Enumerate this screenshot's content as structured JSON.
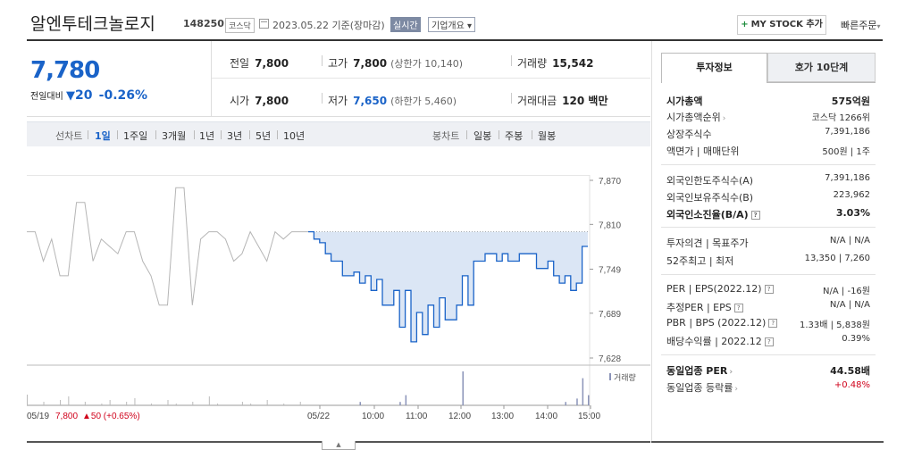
{
  "header": {
    "stock_name": "알엔투테크놀로지",
    "stock_code": "148250",
    "market": "코스닥",
    "date_text": "2023.05.22 기준(장마감)",
    "realtime_badge": "실시간",
    "company_overview": "기업개요",
    "company_overview_arrow": "▾",
    "mystock_plus": "+",
    "mystock_label": "MY STOCK 추가",
    "quick_order_label": "빠른주문",
    "quick_order_arrow": "▾"
  },
  "price": {
    "current": "7,780",
    "vs_label": "전일대비",
    "change_symbol": "▼",
    "change_value": "20",
    "change_percent": "-0.26%"
  },
  "stats": {
    "prev_close_label": "전일",
    "prev_close": "7,800",
    "high_label": "고가",
    "high": "7,800",
    "upper_limit": "(상한가 10,140)",
    "volume_label": "거래량",
    "volume": "15,542",
    "open_label": "시가",
    "open": "7,800",
    "low_label": "저가",
    "low": "7,650",
    "lower_limit": "(하한가 5,460)",
    "amount_label": "거래대금",
    "amount": "120 백만"
  },
  "toolbar": {
    "line_chart_label": "선차트",
    "ranges": [
      "1일",
      "1주일",
      "3개월",
      "1년",
      "3년",
      "5년",
      "10년"
    ],
    "selected_range": "1일",
    "candle_chart_label": "봉차트",
    "candle_ranges": [
      "일봉",
      "주봉",
      "월봉"
    ]
  },
  "chart_data": {
    "type": "line",
    "y_ticks": [
      "7,870",
      "7,810",
      "7,749",
      "7,689",
      "7,628"
    ],
    "ylim": [
      7628,
      7870
    ],
    "prev_close": 7800,
    "x_ticks": [
      "05/22",
      "10:00",
      "11:00",
      "12:00",
      "13:00",
      "14:00",
      "15:00"
    ],
    "prev_day_label": "05/19",
    "prev_day_price": "7,800",
    "prev_day_change": "▲50 (+0.65%)",
    "volume_legend": "거래량",
    "series": [
      {
        "values": [
          7800,
          7790,
          7785,
          7770,
          7760,
          7760,
          7740,
          7740,
          7745,
          7730,
          7740,
          7720,
          7735,
          7700,
          7700,
          7720,
          7670,
          7720,
          7650,
          7690,
          7660,
          7700,
          7670,
          7710,
          7680,
          7680,
          7700,
          7740,
          7700,
          7760,
          7760,
          7770,
          7770,
          7760,
          7770,
          7760,
          7760,
          7770,
          7770,
          7770,
          7750,
          7750,
          7760,
          7740,
          7730,
          7740,
          7720,
          7730,
          7780,
          7780
        ]
      }
    ],
    "volume": [
      0,
      0,
      0,
      0,
      0,
      0,
      0,
      0,
      0,
      1,
      0,
      0,
      0,
      0,
      0,
      0,
      1,
      3,
      0,
      0,
      0,
      0,
      0,
      0,
      0,
      0,
      0,
      10,
      0,
      0,
      0,
      0,
      0,
      0,
      0,
      0,
      0,
      0,
      0,
      0,
      0,
      0,
      0,
      0,
      0,
      1,
      0,
      2,
      8,
      3
    ]
  },
  "info_panel": {
    "tab_active": "투자정보",
    "tab_inactive": "호가 10단계",
    "market_cap_label": "시가총액",
    "market_cap": "575억원",
    "market_cap_rank_label": "시가총액순위",
    "market_cap_rank": "코스닥 1266위",
    "listed_shares_label": "상장주식수",
    "listed_shares": "7,391,186",
    "face_value_label": "액면가 | 매매단위",
    "face_value": "500원 | 1주",
    "foreign_limit_label": "외국인한도주식수(A)",
    "foreign_limit": "7,391,186",
    "foreign_held_label": "외국인보유주식수(B)",
    "foreign_held": "223,962",
    "foreign_ratio_label": "외국인소진율(B/A)",
    "foreign_ratio": "3.03%",
    "opinion_label": "투자의견 | 목표주가",
    "opinion": "N/A | N/A",
    "week52_label": "52주최고 | 최저",
    "week52": "13,350 | 7,260",
    "per_label": "PER | EPS(2022.12)",
    "per": "N/A | -16원",
    "est_per_label": "추정PER | EPS",
    "est_per": "N/A | N/A",
    "pbr_label": "PBR | BPS (2022.12)",
    "pbr": "1.33배 | 5,838원",
    "dividend_label": "배당수익률 | 2022.12",
    "dividend": "0.39%",
    "industry_per_label": "동일업종 PER",
    "industry_per": "44.58배",
    "industry_rate_label": "동일업종 등락률",
    "industry_rate": "+0.48%"
  },
  "colors": {
    "price_blue": "#1a63c8",
    "up_red": "#d0021b",
    "area_fill": "#dbe6f5",
    "prev_line": "#aaaaaa"
  }
}
